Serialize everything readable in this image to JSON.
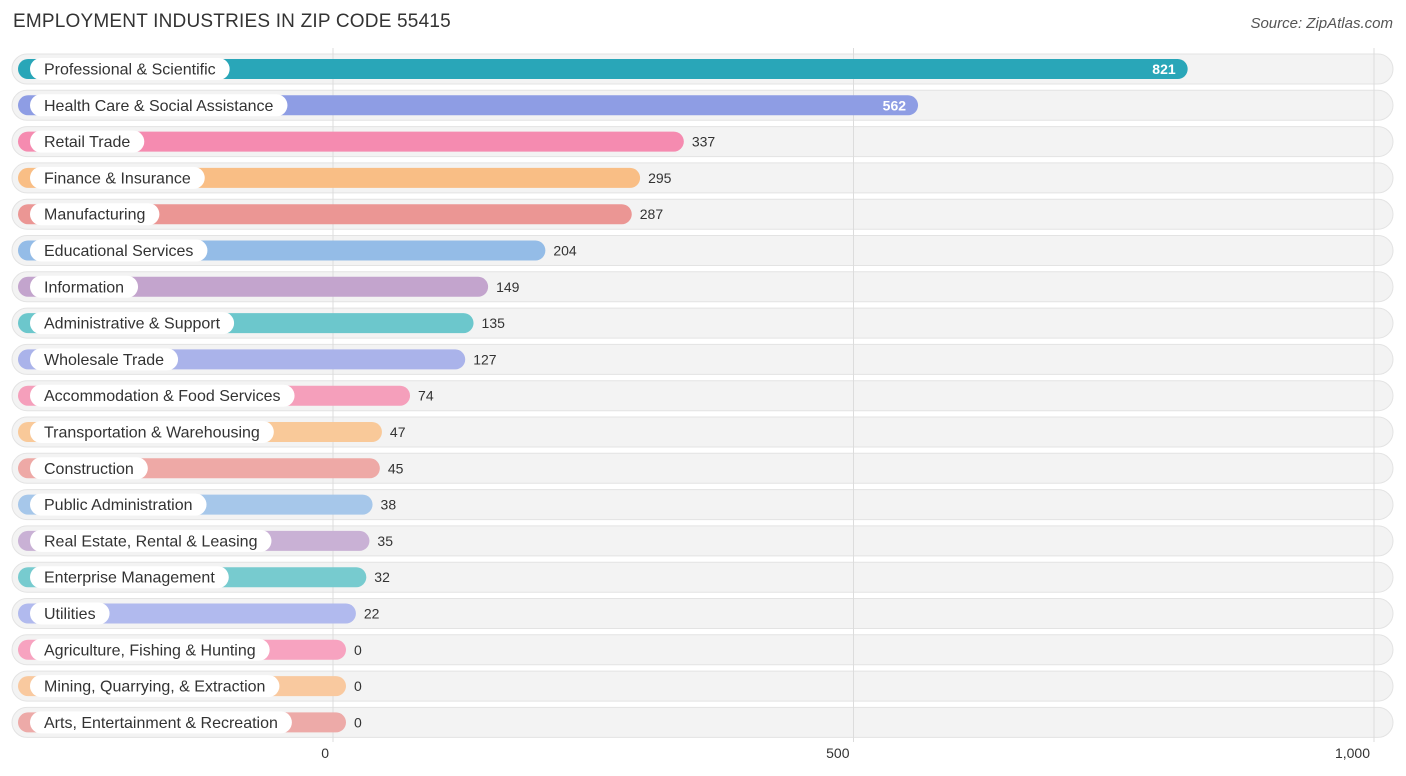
{
  "header": {
    "title": "EMPLOYMENT INDUSTRIES IN ZIP CODE 55415",
    "source": "Source: ZipAtlas.com"
  },
  "chart_data": {
    "type": "bar",
    "orientation": "horizontal",
    "title": "EMPLOYMENT INDUSTRIES IN ZIP CODE 55415",
    "xlabel": "",
    "ylabel": "",
    "xlim": [
      0,
      1000
    ],
    "x_ticks": [
      0,
      500,
      1000
    ],
    "x_tick_labels": [
      "0",
      "500",
      "1,000"
    ],
    "grid": true,
    "categories": [
      "Professional & Scientific",
      "Health Care & Social Assistance",
      "Retail Trade",
      "Finance & Insurance",
      "Manufacturing",
      "Educational Services",
      "Information",
      "Administrative & Support",
      "Wholesale Trade",
      "Accommodation & Food Services",
      "Transportation & Warehousing",
      "Construction",
      "Public Administration",
      "Real Estate, Rental & Leasing",
      "Enterprise Management",
      "Utilities",
      "Agriculture, Fishing & Hunting",
      "Mining, Quarrying, & Extraction",
      "Arts, Entertainment & Recreation"
    ],
    "values": [
      821,
      562,
      337,
      295,
      287,
      204,
      149,
      135,
      127,
      74,
      47,
      45,
      38,
      35,
      32,
      22,
      0,
      0,
      0
    ],
    "value_labels": [
      "821",
      "562",
      "337",
      "295",
      "287",
      "204",
      "149",
      "135",
      "127",
      "74",
      "47",
      "45",
      "38",
      "35",
      "32",
      "22",
      "0",
      "0",
      "0"
    ],
    "colors": [
      "#29a6b8",
      "#8e9de4",
      "#f58bb0",
      "#f9be85",
      "#eb9694",
      "#94bce7",
      "#c3a4cd",
      "#6cc7cc",
      "#aab3ea",
      "#f59fbb",
      "#f9c999",
      "#eea9a6",
      "#a6c7ea",
      "#c9b1d5",
      "#77cbcf",
      "#b1baee",
      "#f7a3c0",
      "#f9c99f",
      "#edaaa8"
    ]
  }
}
